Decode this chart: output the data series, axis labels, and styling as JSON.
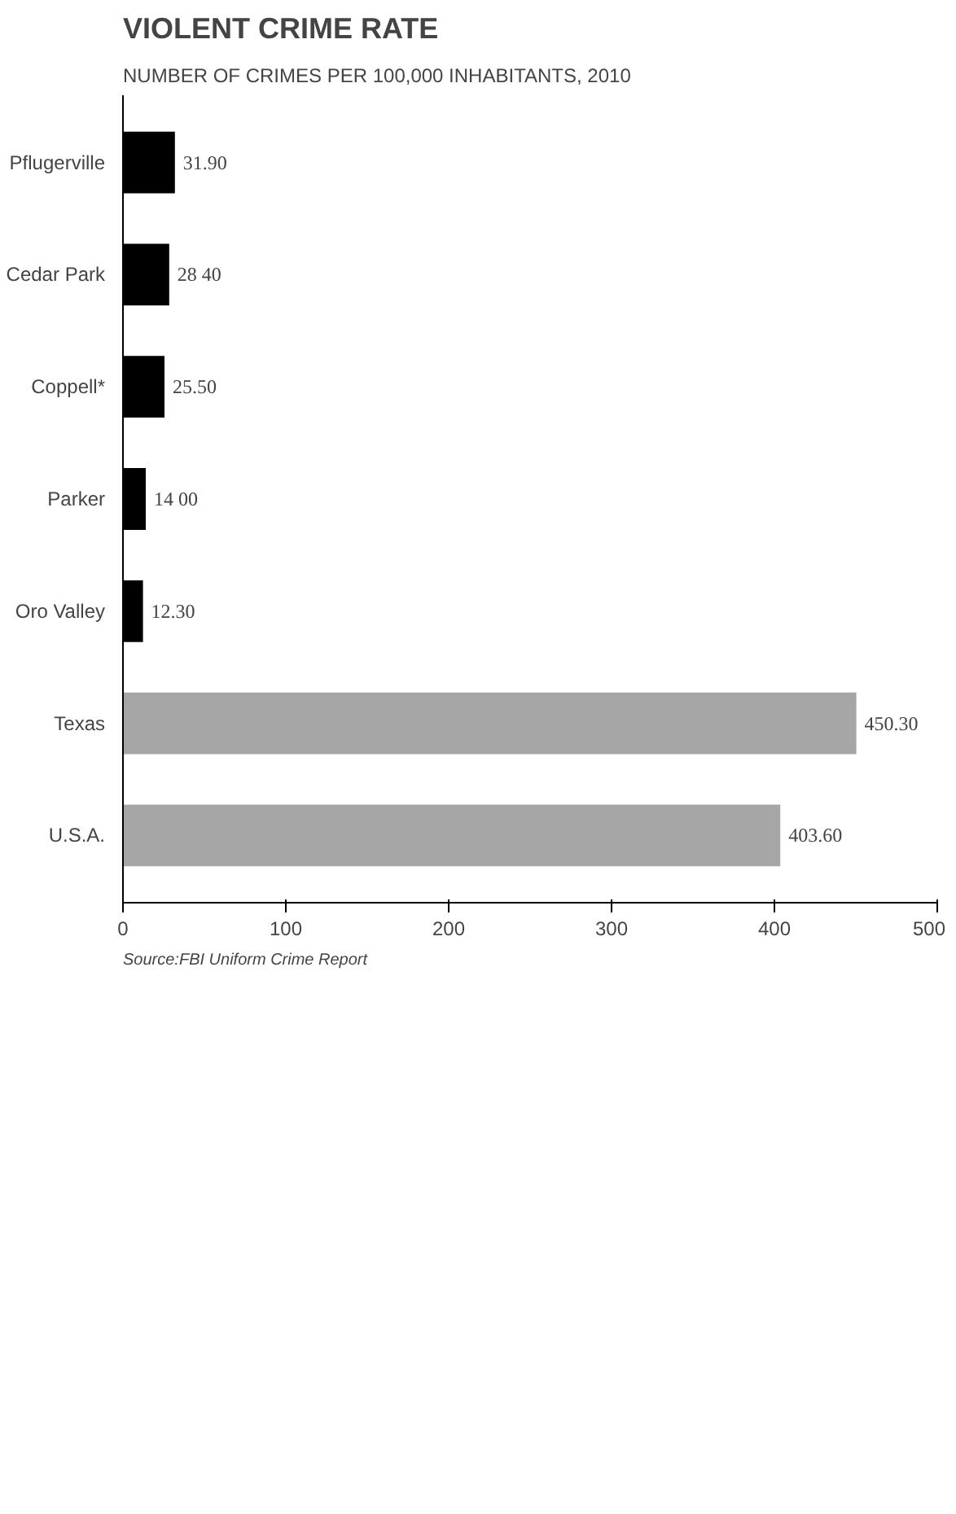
{
  "chart_data": {
    "type": "bar",
    "orientation": "horizontal",
    "title": "VIOLENT CRIME RATE",
    "subtitle": "NUMBER OF CRIMES PER 100,000 INHABITANTS, 2010",
    "categories": [
      "Pflugerville",
      "Cedar Park",
      "Coppell*",
      "Parker",
      "Oro Valley",
      "Texas",
      "U.S.A."
    ],
    "values": [
      31.9,
      28.4,
      25.5,
      14.0,
      12.3,
      450.3,
      403.6
    ],
    "colors": [
      "#000000",
      "#000000",
      "#000000",
      "#000000",
      "#000000",
      "#a6a6a6",
      "#a6a6a6"
    ],
    "value_labels": [
      "31.90",
      "28 40",
      "25.50",
      "14 00",
      "12.30",
      "450.30",
      "403.60"
    ],
    "xlim": [
      0,
      500
    ],
    "xticks": [
      0,
      100,
      200,
      300,
      400,
      500
    ],
    "grid": false,
    "annotations": [
      "Source:FBI Uniform Crime Report"
    ]
  }
}
